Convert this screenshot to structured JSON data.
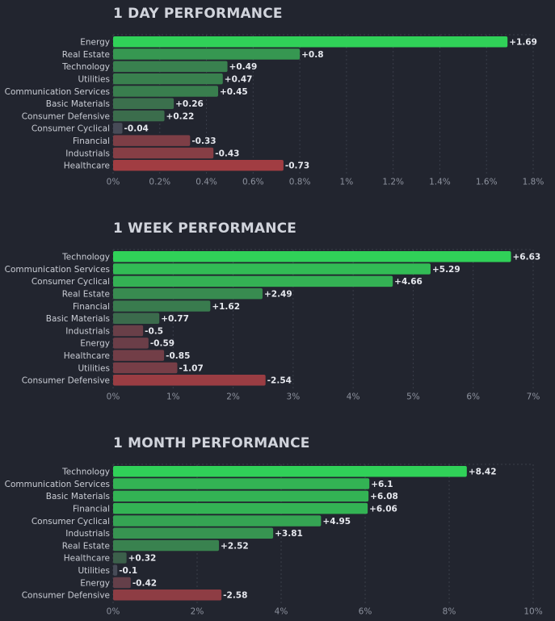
{
  "chart_data": [
    {
      "type": "bar",
      "title": "1 DAY PERFORMANCE",
      "categories": [
        "Energy",
        "Real Estate",
        "Technology",
        "Utilities",
        "Communication Services",
        "Basic Materials",
        "Consumer Defensive",
        "Consumer Cyclical",
        "Financial",
        "Industrials",
        "Healthcare"
      ],
      "values": [
        1.69,
        0.8,
        0.49,
        0.47,
        0.45,
        0.26,
        0.22,
        -0.04,
        -0.33,
        -0.43,
        -0.73
      ],
      "value_labels": [
        "+1.69",
        "+0.8",
        "+0.49",
        "+0.47",
        "+0.45",
        "+0.26",
        "+0.22",
        "-0.04",
        "-0.33",
        "-0.43",
        "-0.73"
      ],
      "xlim": [
        0,
        1.8
      ],
      "xticks": [
        0,
        0.2,
        0.4,
        0.6,
        0.8,
        1,
        1.2,
        1.4,
        1.6,
        1.8
      ],
      "xtick_labels": [
        "0%",
        "0.2%",
        "0.4%",
        "0.6%",
        "0.8%",
        "1%",
        "1.2%",
        "1.4%",
        "1.6%",
        "1.8%"
      ],
      "grid": true
    },
    {
      "type": "bar",
      "title": "1 WEEK PERFORMANCE",
      "categories": [
        "Technology",
        "Communication Services",
        "Consumer Cyclical",
        "Real Estate",
        "Financial",
        "Basic Materials",
        "Industrials",
        "Energy",
        "Healthcare",
        "Utilities",
        "Consumer Defensive"
      ],
      "values": [
        6.63,
        5.29,
        4.66,
        2.49,
        1.62,
        0.77,
        -0.5,
        -0.59,
        -0.85,
        -1.07,
        -2.54
      ],
      "value_labels": [
        "+6.63",
        "+5.29",
        "+4.66",
        "+2.49",
        "+1.62",
        "+0.77",
        "-0.5",
        "-0.59",
        "-0.85",
        "-1.07",
        "-2.54"
      ],
      "xlim": [
        0,
        7
      ],
      "xticks": [
        0,
        1,
        2,
        3,
        4,
        5,
        6,
        7
      ],
      "xtick_labels": [
        "0%",
        "1%",
        "2%",
        "3%",
        "4%",
        "5%",
        "6%",
        "7%"
      ],
      "grid": true
    },
    {
      "type": "bar",
      "title": "1 MONTH PERFORMANCE",
      "categories": [
        "Technology",
        "Communication Services",
        "Basic Materials",
        "Financial",
        "Consumer Cyclical",
        "Industrials",
        "Real Estate",
        "Healthcare",
        "Utilities",
        "Energy",
        "Consumer Defensive"
      ],
      "values": [
        8.42,
        6.1,
        6.08,
        6.06,
        4.95,
        3.81,
        2.52,
        0.32,
        -0.1,
        -0.42,
        -2.58
      ],
      "value_labels": [
        "+8.42",
        "+6.1",
        "+6.08",
        "+6.06",
        "+4.95",
        "+3.81",
        "+2.52",
        "+0.32",
        "-0.1",
        "-0.42",
        "-2.58"
      ],
      "xlim": [
        0,
        10
      ],
      "xticks": [
        0,
        2,
        4,
        6,
        8,
        10
      ],
      "xtick_labels": [
        "0%",
        "2%",
        "4%",
        "6%",
        "8%",
        "10%"
      ],
      "grid": true
    }
  ],
  "colors": {
    "background": "#22252f",
    "grid": "#3a3e4a",
    "positive_max": "#30d158",
    "positive_min": "#3d5a4a",
    "neutral": "#474b57",
    "negative_min": "#5a3f4a",
    "negative_max": "#f23a3a"
  }
}
